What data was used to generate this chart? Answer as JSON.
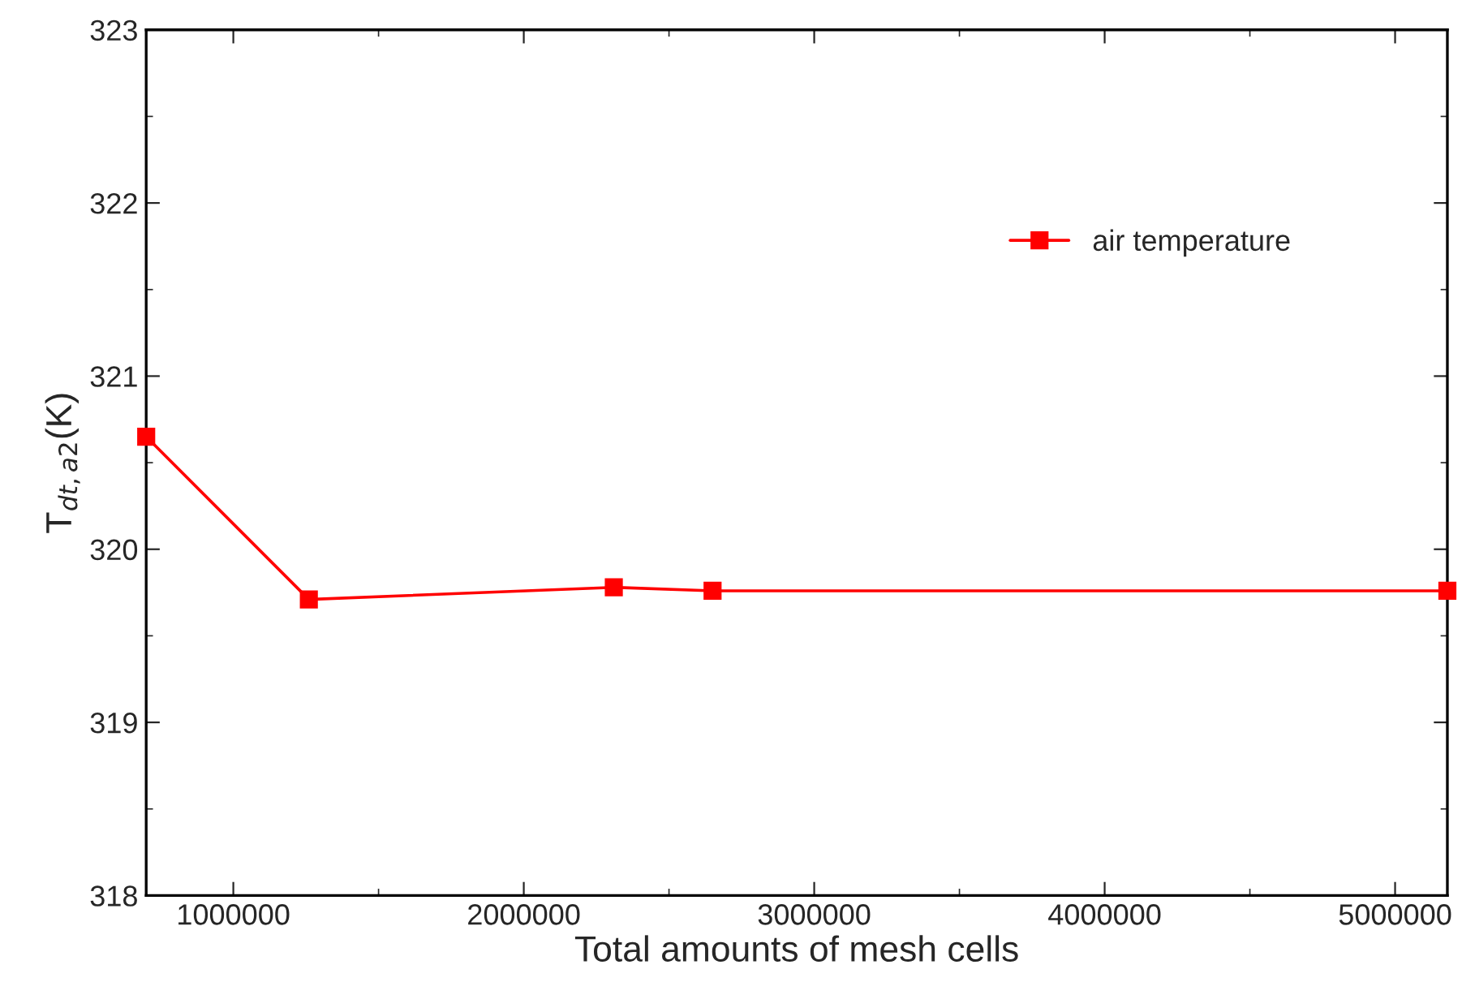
{
  "chart_data": {
    "type": "line",
    "xlabel": "Total amounts of mesh cells",
    "ylabel": "T$_{dt,a2}$(K)",
    "x": [
      700000,
      1260000,
      2310000,
      2650000,
      5180000
    ],
    "series": [
      {
        "name": "air temperature",
        "color": "#ff0000",
        "values": [
          320.65,
          319.71,
          319.78,
          319.76,
          319.76
        ]
      }
    ],
    "xlim": [
      700000,
      5180000
    ],
    "xticks": [
      1000000,
      2000000,
      3000000,
      4000000,
      5000000
    ],
    "ylim": [
      318,
      323
    ],
    "yticks": [
      318,
      319,
      320,
      321,
      322,
      323
    ],
    "marker": "square",
    "line_style": "solid",
    "grid": false,
    "legend": "top right"
  }
}
